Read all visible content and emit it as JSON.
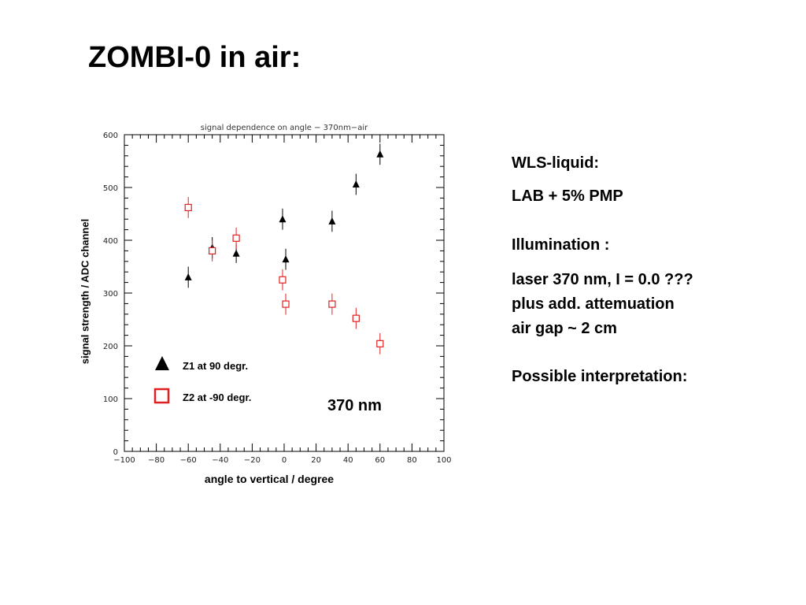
{
  "slide": {
    "title": "ZOMBI-0 in air:"
  },
  "side_text": {
    "wls_heading": "WLS-liquid:",
    "wls_value": "LAB + 5% PMP",
    "illumination_heading": "Illumination :",
    "illumination_line1": "laser 370 nm,  I = 0.0 ???",
    "illumination_line2": "plus add. attemuation",
    "illumination_line3": "air gap ~ 2 cm",
    "interpretation": "Possible interpretation:"
  },
  "chart_data": {
    "type": "scatter",
    "title": "signal dependence on angle − 370nm−air",
    "xlabel": "angle to vertical / degree",
    "ylabel": "signal strength / ADC channel",
    "xlim": [
      -100,
      100
    ],
    "ylim": [
      0,
      600
    ],
    "xticks": [
      -100,
      -80,
      -60,
      -40,
      -20,
      0,
      20,
      40,
      60,
      80,
      100
    ],
    "yticks": [
      0,
      100,
      200,
      300,
      400,
      500,
      600
    ],
    "xtick_labels": [
      "−100",
      "−80",
      "−60",
      "−40",
      "−20",
      "0",
      "20",
      "40",
      "60",
      "80",
      "100"
    ],
    "ytick_labels": [
      "0",
      "100",
      "200",
      "300",
      "400",
      "500",
      "600"
    ],
    "grid": false,
    "legend_position": "bottom-left",
    "annotation": "370 nm",
    "series": [
      {
        "name": "Z1 at  90 degr.",
        "marker": "filled-triangle",
        "color": "#000000",
        "points": [
          {
            "x": -60,
            "y": 330,
            "err": 20
          },
          {
            "x": -45,
            "y": 386,
            "err": 20
          },
          {
            "x": -30,
            "y": 375,
            "err": 18
          },
          {
            "x": -1,
            "y": 440,
            "err": 20
          },
          {
            "x": 1,
            "y": 364,
            "err": 20
          },
          {
            "x": 30,
            "y": 436,
            "err": 20
          },
          {
            "x": 45,
            "y": 506,
            "err": 20
          },
          {
            "x": 60,
            "y": 563,
            "err": 20
          }
        ]
      },
      {
        "name": "Z2 at -90 degr.",
        "marker": "open-square",
        "color": "#e02020",
        "points": [
          {
            "x": -60,
            "y": 462,
            "err": 20
          },
          {
            "x": -45,
            "y": 380,
            "err": 20
          },
          {
            "x": -30,
            "y": 404,
            "err": 20
          },
          {
            "x": -1,
            "y": 325,
            "err": 20
          },
          {
            "x": 1,
            "y": 279,
            "err": 20
          },
          {
            "x": 30,
            "y": 279,
            "err": 20
          },
          {
            "x": 45,
            "y": 252,
            "err": 20
          },
          {
            "x": 60,
            "y": 204,
            "err": 20
          }
        ]
      }
    ]
  }
}
